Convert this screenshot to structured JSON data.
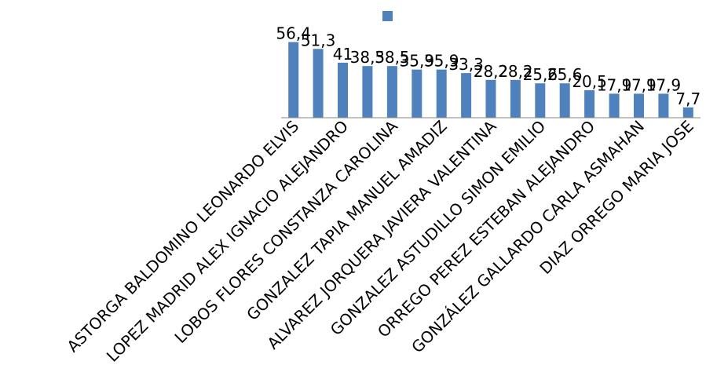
{
  "chart_data": {
    "type": "bar",
    "categories": [
      "ASTORGA BALDOMINO LEONARDO ELVIS",
      "",
      "LOPEZ MADRID ALEX IGNACIO ALEJANDRO",
      "",
      "LOBOS FLORES CONSTANZA CAROLINA",
      "",
      "GONZALEZ TAPIA MANUEL AMADIZ",
      "",
      "ALVAREZ JORQUERA JAVIERA VALENTINA",
      "",
      "GONZALEZ ASTUDILLO SIMON EMILIO",
      "",
      "ORREGO PEREZ ESTEBAN ALEJANDRO",
      "",
      "GONZÁLEZ GALLARDO CARLA ASMAHAN",
      "",
      "DIAZ ORREGO MARIA JOSE"
    ],
    "values": [
      56.4,
      51.3,
      41,
      38.5,
      38.5,
      35.9,
      35.9,
      33.3,
      28.2,
      28.2,
      25.6,
      25.6,
      20.5,
      17.9,
      17.9,
      17.9,
      7.7
    ],
    "data_labels": [
      "56,4",
      "51,3",
      "41",
      "38,5",
      "38,5",
      "35,9",
      "35,9",
      "33,3",
      "28,2",
      "28,2",
      "25,6",
      "25,6",
      "20,5",
      "17,9",
      "17,9",
      "17,9",
      "7,7"
    ],
    "series": [
      {
        "values": [
          56.4,
          51.3,
          41,
          38.5,
          38.5,
          35.9,
          35.9,
          33.3,
          28.2,
          28.2,
          25.6,
          25.6,
          20.5,
          17.9,
          17.9,
          17.9,
          7.7
        ]
      }
    ],
    "title": "",
    "xlabel": "",
    "ylabel": "",
    "ylim": [
      0,
      60
    ],
    "grid": false,
    "legend": "top-center",
    "colors": {
      "bar": "#4f81bd",
      "axis": "#868686",
      "text": "#000000"
    }
  }
}
